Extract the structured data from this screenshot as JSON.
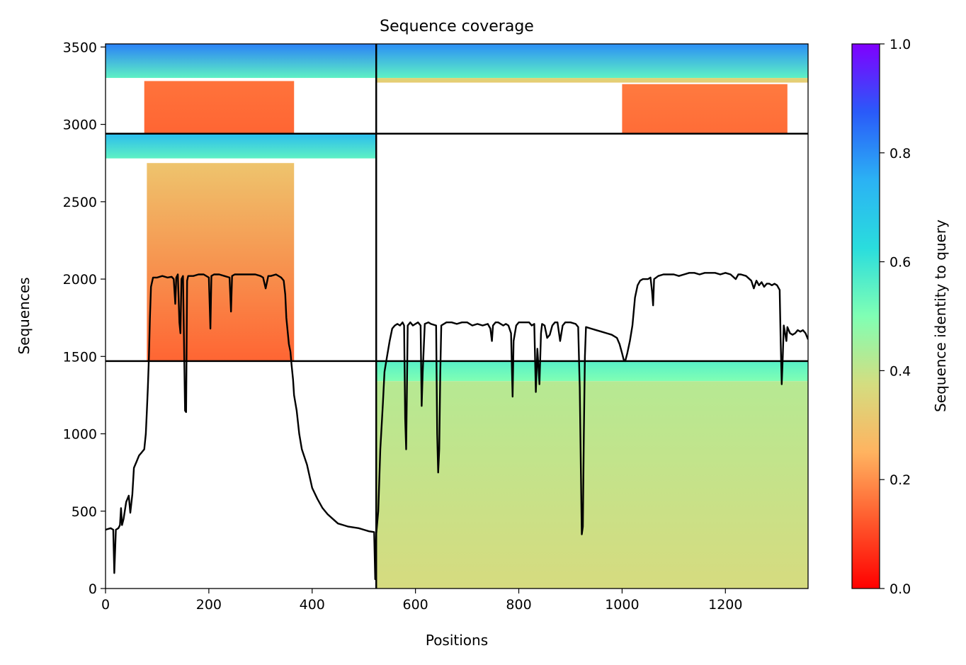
{
  "chart_data": {
    "type": "heatmap",
    "title": "Sequence coverage",
    "xlabel": "Positions",
    "ylabel": "Sequences",
    "xlim": [
      0,
      1360
    ],
    "ylim": [
      0,
      3520
    ],
    "xticks": [
      0,
      200,
      400,
      600,
      800,
      1000,
      1200
    ],
    "yticks": [
      0,
      500,
      1000,
      1500,
      2000,
      2500,
      3000,
      3500
    ],
    "colorbar": {
      "label": "Sequence identity to query",
      "range": [
        0,
        1
      ],
      "ticks": [
        0.0,
        0.2,
        0.4,
        0.6,
        0.8,
        1.0
      ],
      "tick_labels": [
        "0.0",
        "0.2",
        "0.4",
        "0.6",
        "0.8",
        "1.0"
      ],
      "colormap": "rainbow_r"
    },
    "divider_lines": {
      "vertical_x": 524,
      "horizontal_y": [
        1470,
        2940
      ]
    },
    "blocks": [
      {
        "name": "top-left",
        "x_range": [
          0,
          524
        ],
        "y_range": [
          2940,
          3520
        ],
        "bands": [
          {
            "y": [
              3300,
              3520
            ],
            "x": [
              0,
              524
            ],
            "identity_start": 0.55,
            "identity_end": 0.82
          },
          {
            "y": [
              2940,
              3280
            ],
            "x": [
              75,
              365
            ],
            "identity_start": 0.14,
            "identity_end": 0.16
          }
        ]
      },
      {
        "name": "top-right",
        "x_range": [
          524,
          1360
        ],
        "y_range": [
          2940,
          3520
        ],
        "bands": [
          {
            "y": [
              3300,
              3520
            ],
            "x": [
              524,
              1360
            ],
            "identity_start": 0.55,
            "identity_end": 0.8
          },
          {
            "y": [
              3270,
              3300
            ],
            "x": [
              524,
              1360
            ],
            "identity_start": 0.32,
            "identity_end": 0.35
          },
          {
            "y": [
              2940,
              3260
            ],
            "x": [
              1000,
              1320
            ],
            "identity_start": 0.15,
            "identity_end": 0.17
          }
        ]
      },
      {
        "name": "middle-left",
        "x_range": [
          0,
          524
        ],
        "y_range": [
          1470,
          2940
        ],
        "bands": [
          {
            "y": [
              2780,
              2940
            ],
            "x": [
              0,
              524
            ],
            "identity_start": 0.55,
            "identity_end": 0.72
          },
          {
            "y": [
              1470,
              2750
            ],
            "x": [
              80,
              365
            ],
            "identity_start": 0.14,
            "identity_end": 0.3
          }
        ]
      },
      {
        "name": "bottom-right",
        "x_range": [
          524,
          1360
        ],
        "y_range": [
          0,
          1470
        ],
        "bands": [
          {
            "y": [
              1340,
              1470
            ],
            "x": [
              524,
              1360
            ],
            "identity_start": 0.5,
            "identity_end": 0.56
          },
          {
            "y": [
              0,
              1340
            ],
            "x": [
              524,
              1360
            ],
            "identity_start": 0.37,
            "identity_end": 0.42
          }
        ]
      }
    ],
    "series": [
      {
        "type": "line",
        "color": "#000000",
        "points": [
          [
            0,
            380
          ],
          [
            5,
            385
          ],
          [
            10,
            390
          ],
          [
            15,
            380
          ],
          [
            17,
            100
          ],
          [
            20,
            380
          ],
          [
            25,
            390
          ],
          [
            28,
            410
          ],
          [
            30,
            520
          ],
          [
            32,
            410
          ],
          [
            35,
            450
          ],
          [
            40,
            560
          ],
          [
            45,
            600
          ],
          [
            48,
            490
          ],
          [
            52,
            610
          ],
          [
            55,
            780
          ],
          [
            60,
            820
          ],
          [
            65,
            860
          ],
          [
            70,
            880
          ],
          [
            75,
            900
          ],
          [
            78,
            1000
          ],
          [
            80,
            1150
          ],
          [
            82,
            1300
          ],
          [
            84,
            1500
          ],
          [
            86,
            1750
          ],
          [
            88,
            1950
          ],
          [
            92,
            2010
          ],
          [
            100,
            2010
          ],
          [
            110,
            2020
          ],
          [
            120,
            2010
          ],
          [
            128,
            2015
          ],
          [
            132,
            2000
          ],
          [
            135,
            1840
          ],
          [
            137,
            2010
          ],
          [
            140,
            2030
          ],
          [
            143,
            1720
          ],
          [
            145,
            1650
          ],
          [
            147,
            2000
          ],
          [
            150,
            2020
          ],
          [
            154,
            1150
          ],
          [
            156,
            1140
          ],
          [
            158,
            1990
          ],
          [
            160,
            2020
          ],
          [
            170,
            2020
          ],
          [
            180,
            2030
          ],
          [
            190,
            2030
          ],
          [
            200,
            2010
          ],
          [
            203,
            1680
          ],
          [
            205,
            2020
          ],
          [
            210,
            2030
          ],
          [
            220,
            2030
          ],
          [
            230,
            2020
          ],
          [
            240,
            2010
          ],
          [
            243,
            1790
          ],
          [
            245,
            2020
          ],
          [
            250,
            2030
          ],
          [
            260,
            2030
          ],
          [
            270,
            2030
          ],
          [
            280,
            2030
          ],
          [
            290,
            2030
          ],
          [
            300,
            2020
          ],
          [
            305,
            2010
          ],
          [
            310,
            1940
          ],
          [
            315,
            2020
          ],
          [
            320,
            2020
          ],
          [
            330,
            2030
          ],
          [
            340,
            2010
          ],
          [
            345,
            1990
          ],
          [
            348,
            1900
          ],
          [
            350,
            1750
          ],
          [
            355,
            1580
          ],
          [
            358,
            1530
          ],
          [
            360,
            1450
          ],
          [
            363,
            1350
          ],
          [
            365,
            1250
          ],
          [
            370,
            1150
          ],
          [
            375,
            1000
          ],
          [
            380,
            900
          ],
          [
            390,
            800
          ],
          [
            400,
            650
          ],
          [
            410,
            580
          ],
          [
            420,
            520
          ],
          [
            430,
            480
          ],
          [
            440,
            450
          ],
          [
            450,
            420
          ],
          [
            460,
            410
          ],
          [
            470,
            400
          ],
          [
            480,
            395
          ],
          [
            490,
            390
          ],
          [
            500,
            380
          ],
          [
            510,
            370
          ],
          [
            520,
            365
          ],
          [
            522,
            60
          ],
          [
            524,
            350
          ],
          [
            528,
            500
          ],
          [
            532,
            900
          ],
          [
            537,
            1200
          ],
          [
            540,
            1400
          ],
          [
            545,
            1500
          ],
          [
            550,
            1600
          ],
          [
            555,
            1680
          ],
          [
            560,
            1700
          ],
          [
            565,
            1710
          ],
          [
            570,
            1700
          ],
          [
            575,
            1720
          ],
          [
            578,
            1700
          ],
          [
            580,
            1100
          ],
          [
            582,
            900
          ],
          [
            585,
            1700
          ],
          [
            590,
            1720
          ],
          [
            595,
            1700
          ],
          [
            600,
            1710
          ],
          [
            605,
            1720
          ],
          [
            610,
            1700
          ],
          [
            612,
            1180
          ],
          [
            614,
            1400
          ],
          [
            618,
            1710
          ],
          [
            625,
            1720
          ],
          [
            630,
            1710
          ],
          [
            640,
            1700
          ],
          [
            642,
            1000
          ],
          [
            644,
            750
          ],
          [
            646,
            900
          ],
          [
            648,
            1400
          ],
          [
            650,
            1700
          ],
          [
            660,
            1720
          ],
          [
            670,
            1720
          ],
          [
            680,
            1710
          ],
          [
            690,
            1720
          ],
          [
            700,
            1720
          ],
          [
            710,
            1700
          ],
          [
            720,
            1710
          ],
          [
            730,
            1700
          ],
          [
            740,
            1710
          ],
          [
            745,
            1680
          ],
          [
            748,
            1600
          ],
          [
            750,
            1700
          ],
          [
            755,
            1720
          ],
          [
            760,
            1720
          ],
          [
            770,
            1700
          ],
          [
            775,
            1710
          ],
          [
            780,
            1700
          ],
          [
            785,
            1650
          ],
          [
            788,
            1240
          ],
          [
            790,
            1600
          ],
          [
            795,
            1700
          ],
          [
            800,
            1720
          ],
          [
            805,
            1720
          ],
          [
            810,
            1720
          ],
          [
            820,
            1720
          ],
          [
            825,
            1700
          ],
          [
            830,
            1710
          ],
          [
            833,
            1270
          ],
          [
            836,
            1550
          ],
          [
            840,
            1320
          ],
          [
            843,
            1650
          ],
          [
            845,
            1710
          ],
          [
            850,
            1700
          ],
          [
            855,
            1620
          ],
          [
            860,
            1640
          ],
          [
            865,
            1700
          ],
          [
            870,
            1720
          ],
          [
            875,
            1720
          ],
          [
            880,
            1600
          ],
          [
            885,
            1700
          ],
          [
            890,
            1720
          ],
          [
            900,
            1720
          ],
          [
            910,
            1710
          ],
          [
            915,
            1690
          ],
          [
            918,
            1300
          ],
          [
            920,
            800
          ],
          [
            922,
            350
          ],
          [
            924,
            400
          ],
          [
            926,
            1000
          ],
          [
            928,
            1500
          ],
          [
            930,
            1690
          ],
          [
            940,
            1680
          ],
          [
            950,
            1670
          ],
          [
            960,
            1660
          ],
          [
            970,
            1650
          ],
          [
            980,
            1640
          ],
          [
            990,
            1620
          ],
          [
            995,
            1580
          ],
          [
            1000,
            1520
          ],
          [
            1003,
            1480
          ],
          [
            1006,
            1470
          ],
          [
            1010,
            1520
          ],
          [
            1015,
            1600
          ],
          [
            1020,
            1700
          ],
          [
            1025,
            1880
          ],
          [
            1030,
            1960
          ],
          [
            1035,
            1990
          ],
          [
            1040,
            2000
          ],
          [
            1050,
            2000
          ],
          [
            1055,
            2010
          ],
          [
            1058,
            1920
          ],
          [
            1060,
            1830
          ],
          [
            1062,
            2000
          ],
          [
            1070,
            2020
          ],
          [
            1080,
            2030
          ],
          [
            1090,
            2030
          ],
          [
            1100,
            2030
          ],
          [
            1110,
            2020
          ],
          [
            1120,
            2030
          ],
          [
            1130,
            2040
          ],
          [
            1140,
            2040
          ],
          [
            1150,
            2030
          ],
          [
            1160,
            2040
          ],
          [
            1170,
            2040
          ],
          [
            1180,
            2040
          ],
          [
            1190,
            2030
          ],
          [
            1200,
            2040
          ],
          [
            1210,
            2030
          ],
          [
            1220,
            2000
          ],
          [
            1225,
            2030
          ],
          [
            1230,
            2030
          ],
          [
            1240,
            2020
          ],
          [
            1250,
            1990
          ],
          [
            1255,
            1940
          ],
          [
            1260,
            1990
          ],
          [
            1265,
            1960
          ],
          [
            1270,
            1980
          ],
          [
            1275,
            1950
          ],
          [
            1280,
            1970
          ],
          [
            1285,
            1970
          ],
          [
            1290,
            1960
          ],
          [
            1295,
            1970
          ],
          [
            1300,
            1960
          ],
          [
            1305,
            1930
          ],
          [
            1307,
            1600
          ],
          [
            1309,
            1320
          ],
          [
            1311,
            1500
          ],
          [
            1313,
            1700
          ],
          [
            1315,
            1660
          ],
          [
            1318,
            1600
          ],
          [
            1320,
            1690
          ],
          [
            1325,
            1650
          ],
          [
            1330,
            1640
          ],
          [
            1335,
            1650
          ],
          [
            1340,
            1670
          ],
          [
            1345,
            1660
          ],
          [
            1350,
            1670
          ],
          [
            1355,
            1650
          ],
          [
            1360,
            1610
          ]
        ]
      }
    ]
  }
}
